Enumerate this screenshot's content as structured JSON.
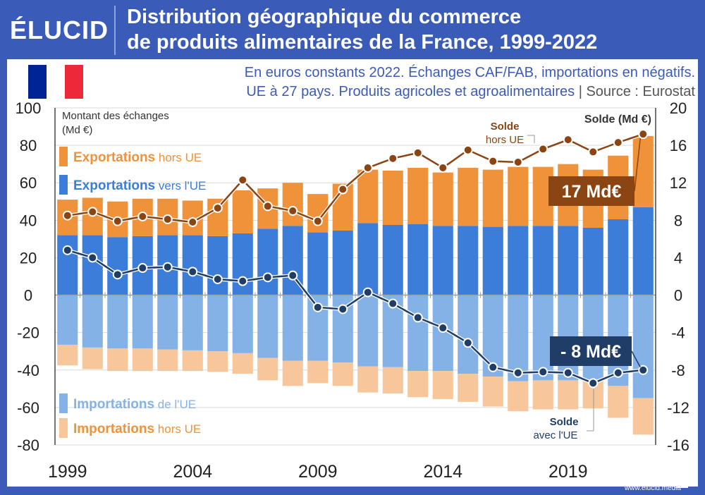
{
  "header": {
    "logo": "ÉLUCID",
    "title_line1": "Distribution géographique du commerce",
    "title_line2": "de produits alimentaires de la France, 1999-2022"
  },
  "subtitle": {
    "line1": "En euros constants 2022. Échanges CAF/FAB, importations en négatifs.",
    "line2": "UE à 27 pays. Produits agricoles et agroalimentaires",
    "separator": "|",
    "source": "Source : Eurostat"
  },
  "footer": {
    "site": "www.elucid.media"
  },
  "colors": {
    "exports_ue": "#3b7dd8",
    "exports_hors_ue": "#f0923a",
    "imports_ue": "#85b2e6",
    "imports_hors_ue": "#f7c79b",
    "solde_hors_ue": "#8b4513",
    "solde_ue": "#1f3d66",
    "flag_blue": "#002395",
    "flag_red": "#ed2939"
  },
  "chart_data": {
    "type": "bar",
    "x": [
      1999,
      2000,
      2001,
      2002,
      2003,
      2004,
      2005,
      2006,
      2007,
      2008,
      2009,
      2010,
      2011,
      2012,
      2013,
      2014,
      2015,
      2016,
      2017,
      2018,
      2019,
      2020,
      2021,
      2022
    ],
    "x_tick_labels": [
      "1999",
      "2004",
      "2009",
      "2014",
      "2019"
    ],
    "y_left_label_line1": "Montant des échanges",
    "y_left_label_line2": "(Md €)",
    "y_left_range": [
      -80,
      100
    ],
    "y_left_ticks": [
      100,
      80,
      60,
      40,
      20,
      0,
      -20,
      -40,
      -60,
      -80
    ],
    "y_right_label": "Solde (Md €)",
    "y_right_range": [
      -16,
      20
    ],
    "y_right_ticks": [
      20,
      16,
      12,
      8,
      4,
      0,
      -4,
      -8,
      -12,
      -16
    ],
    "grid": true,
    "legend_items": [
      {
        "main": "Exportations",
        "qual": "hors UE"
      },
      {
        "main": "Exportations",
        "qual": "vers l'UE"
      },
      {
        "main": "Importations",
        "qual": "de l'UE"
      },
      {
        "main": "Importations",
        "qual": "hors UE"
      }
    ],
    "bar_series": [
      {
        "values": [
          32,
          32,
          31,
          31.5,
          32,
          32,
          31.5,
          33,
          35.5,
          37,
          33.5,
          34.5,
          38.5,
          37.5,
          38,
          37,
          37,
          36.5,
          37,
          37,
          37,
          36,
          40.5,
          47
        ]
      },
      {
        "values": [
          19,
          20,
          19,
          20,
          19.5,
          18.5,
          20,
          23,
          21.5,
          23,
          20.5,
          25,
          28.5,
          29,
          30,
          28.5,
          31,
          30.5,
          31.5,
          31.5,
          33,
          31,
          34,
          38
        ]
      },
      {
        "values": [
          -26.5,
          -28,
          -28.5,
          -28.5,
          -29,
          -29.5,
          -30,
          -31,
          -33.5,
          -35,
          -35,
          -36,
          -38,
          -38.5,
          -40.5,
          -40.5,
          -42,
          -43.5,
          -46,
          -45.5,
          -45.5,
          -45,
          -48.5,
          -55
        ]
      },
      {
        "values": [
          -11,
          -11.5,
          -12,
          -12,
          -11.5,
          -11,
          -11,
          -11,
          -12,
          -13.5,
          -12,
          -12.5,
          -14,
          -14,
          -14,
          -15,
          -15,
          -16,
          -16,
          -15.5,
          -15.5,
          -15.5,
          -17,
          -19.5
        ]
      }
    ],
    "line_series": [
      {
        "axis": "right",
        "values": [
          8.5,
          8.9,
          7.9,
          8.4,
          8.1,
          7.8,
          9.3,
          12.3,
          9.5,
          9.0,
          7.9,
          11.3,
          13.6,
          14.6,
          15.2,
          13.6,
          15.5,
          14.3,
          14.2,
          15.6,
          16.6,
          15.3,
          16.3,
          17.2
        ]
      },
      {
        "axis": "right",
        "values": [
          4.8,
          4.0,
          2.2,
          2.9,
          3.0,
          2.5,
          1.7,
          1.5,
          1.9,
          2.1,
          -1.3,
          -1.5,
          0.3,
          -0.9,
          -2.4,
          -3.5,
          -5.1,
          -7.7,
          -8.3,
          -8.2,
          -8.3,
          -9.4,
          -8.3,
          -8.0
        ]
      }
    ],
    "annotations": {
      "solde_hors_ue_l1": "Solde",
      "solde_hors_ue_l2": "hors UE",
      "solde_ue_l1": "Solde",
      "solde_ue_l2": "avec l'UE",
      "value_hors_ue": "17 Md€",
      "value_ue": "- 8 Md€"
    }
  }
}
